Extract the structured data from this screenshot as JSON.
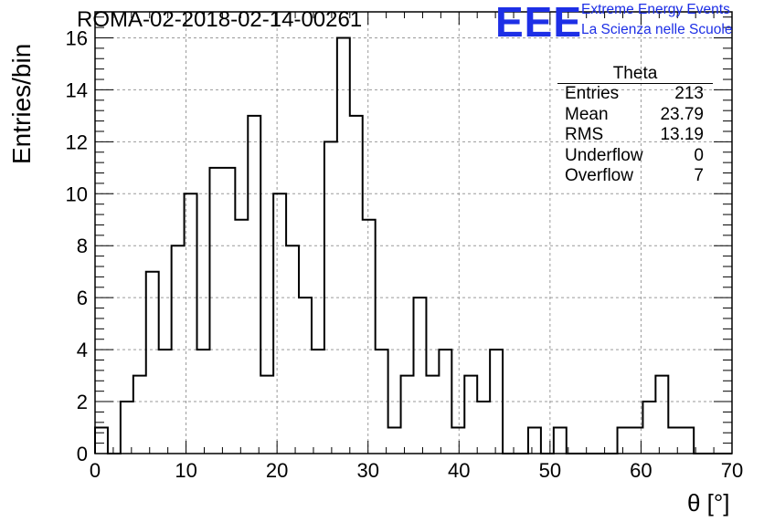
{
  "title": "ROMA-02-2018-02-14-00261",
  "logo": {
    "mark": "EEE",
    "line1": "Extreme Energy Events",
    "line2": "La Scienza nelle Scuole",
    "color": "#1d2fe6"
  },
  "stats": {
    "title": "Theta",
    "rows": [
      {
        "label": "Entries",
        "value": "213"
      },
      {
        "label": "Mean",
        "value": "23.79"
      },
      {
        "label": "RMS",
        "value": "13.19"
      },
      {
        "label": "Underflow",
        "value": "0"
      },
      {
        "label": "Overflow",
        "value": "7"
      }
    ]
  },
  "chart_data": {
    "type": "bar",
    "histogram": true,
    "title": "ROMA-02-2018-02-14-00261",
    "xlabel": "θ [°]",
    "ylabel": "Entries/bin",
    "xlim": [
      0,
      70
    ],
    "ylim": [
      0,
      17
    ],
    "bin_width": 1.4,
    "xticks": [
      0,
      10,
      20,
      30,
      40,
      50,
      60,
      70
    ],
    "yticks": [
      0,
      2,
      4,
      6,
      8,
      10,
      12,
      14,
      16
    ],
    "grid": true,
    "values": [
      1,
      0,
      2,
      3,
      7,
      4,
      8,
      10,
      4,
      11,
      11,
      9,
      13,
      3,
      10,
      8,
      6,
      4,
      12,
      16,
      13,
      9,
      4,
      1,
      3,
      6,
      3,
      4,
      1,
      3,
      2,
      4,
      0,
      0,
      1,
      0,
      1,
      0,
      0,
      0,
      0,
      1,
      1,
      2,
      3,
      1,
      1,
      0,
      0,
      0
    ],
    "color": "#000000"
  }
}
